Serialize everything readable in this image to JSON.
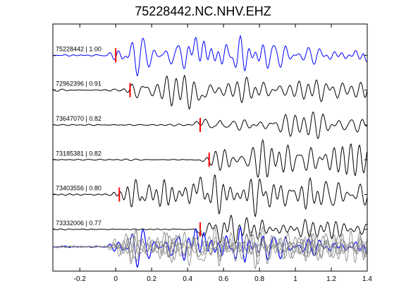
{
  "chart_data": {
    "type": "line",
    "title": "75228442.NC.NHV.EHZ",
    "xlabel": "",
    "ylabel": "",
    "xlim": [
      -0.35,
      1.4
    ],
    "x_ticks": [
      -0.2,
      0,
      0.2,
      0.4,
      0.6,
      0.8,
      1,
      1.2,
      1.4
    ],
    "x_tick_labels": [
      "-0.2",
      "0",
      "0.2",
      "0.4",
      "0.6",
      "0.8",
      "1",
      "1.2",
      "1.4"
    ],
    "grid": false,
    "traces": [
      {
        "label": "75228442 | 1.00",
        "event_id": "75228442",
        "correlation": 1.0,
        "pick_time": 0.0,
        "color": "#0000ff",
        "seed": 1
      },
      {
        "label": "72962396 | 0.91",
        "event_id": "72962396",
        "correlation": 0.91,
        "pick_time": 0.08,
        "color": "#000000",
        "seed": 2
      },
      {
        "label": "73647070 | 0.82",
        "event_id": "73647070",
        "correlation": 0.82,
        "pick_time": 0.47,
        "color": "#000000",
        "seed": 3
      },
      {
        "label": "73185381 | 0.82",
        "event_id": "73185381",
        "correlation": 0.82,
        "pick_time": 0.52,
        "color": "#000000",
        "seed": 4
      },
      {
        "label": "73403556 | 0.80",
        "event_id": "73403556",
        "correlation": 0.8,
        "pick_time": 0.02,
        "color": "#000000",
        "seed": 5
      },
      {
        "label": "73332006 | 0.77",
        "event_id": "73332006",
        "correlation": 0.77,
        "pick_time": 0.47,
        "color": "#000000",
        "seed": 6
      }
    ],
    "stack": {
      "colors": [
        "#808080",
        "#0000ff"
      ]
    },
    "pick_color": "#ff0000"
  }
}
